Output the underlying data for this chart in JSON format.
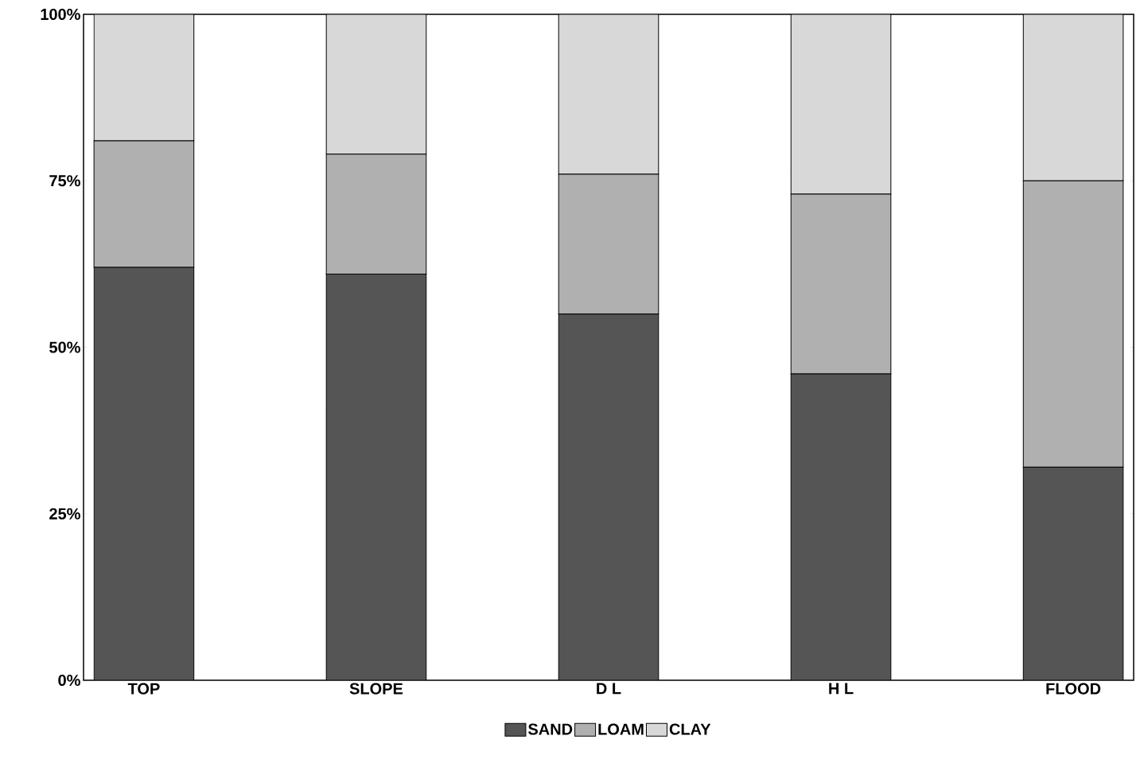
{
  "chart_data": {
    "type": "bar",
    "stacked": true,
    "categories": [
      "TOP",
      "SLOPE",
      "D L",
      "H L",
      "FLOOD"
    ],
    "series": [
      {
        "name": "SAND",
        "color": "#555555",
        "values": [
          62,
          61,
          55,
          46,
          32
        ]
      },
      {
        "name": "LOAM",
        "color": "#b0b0b0",
        "values": [
          19,
          18,
          21,
          27,
          43
        ]
      },
      {
        "name": "CLAY",
        "color": "#d8d8d8",
        "values": [
          19,
          21,
          24,
          27,
          25
        ]
      }
    ],
    "ylim": [
      0,
      100
    ],
    "yticks": [
      {
        "value": 0,
        "label": "0%"
      },
      {
        "value": 25,
        "label": "25%"
      },
      {
        "value": 50,
        "label": "50%"
      },
      {
        "value": 75,
        "label": "75%"
      },
      {
        "value": 100,
        "label": "100%"
      }
    ],
    "grid": false,
    "legend": "bottom"
  }
}
